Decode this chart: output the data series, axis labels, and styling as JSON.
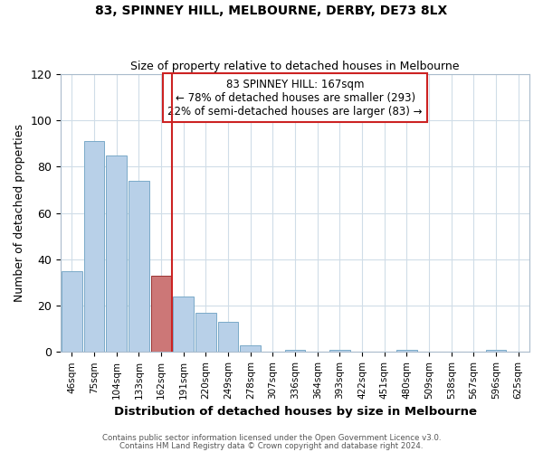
{
  "title": "83, SPINNEY HILL, MELBOURNE, DERBY, DE73 8LX",
  "subtitle": "Size of property relative to detached houses in Melbourne",
  "xlabel": "Distribution of detached houses by size in Melbourne",
  "ylabel": "Number of detached properties",
  "footer_line1": "Contains HM Land Registry data © Crown copyright and database right 2024.",
  "footer_line2": "Contains public sector information licensed under the Open Government Licence v3.0.",
  "bin_labels": [
    "46sqm",
    "75sqm",
    "104sqm",
    "133sqm",
    "162sqm",
    "191sqm",
    "220sqm",
    "249sqm",
    "278sqm",
    "307sqm",
    "336sqm",
    "364sqm",
    "393sqm",
    "422sqm",
    "451sqm",
    "480sqm",
    "509sqm",
    "538sqm",
    "567sqm",
    "596sqm",
    "625sqm"
  ],
  "bar_heights": [
    35,
    91,
    85,
    74,
    33,
    24,
    17,
    13,
    3,
    0,
    1,
    0,
    1,
    0,
    0,
    1,
    0,
    0,
    0,
    1,
    0
  ],
  "bar_color": "#b8d0e8",
  "bar_edge_color": "#7aaac8",
  "highlight_bar_color": "#cc7777",
  "highlight_bar_edge_color": "#993333",
  "highlight_index": 4,
  "vline_color": "#cc2222",
  "ylim": [
    0,
    120
  ],
  "yticks": [
    0,
    20,
    40,
    60,
    80,
    100,
    120
  ],
  "annotation_title": "83 SPINNEY HILL: 167sqm",
  "annotation_line1": "← 78% of detached houses are smaller (293)",
  "annotation_line2": "22% of semi-detached houses are larger (83) →",
  "annotation_box_facecolor": "#ffffff",
  "annotation_box_edgecolor": "#cc2222",
  "fig_facecolor": "#ffffff",
  "ax_facecolor": "#ffffff",
  "grid_color": "#d0dde8",
  "spine_color": "#aabbcc"
}
